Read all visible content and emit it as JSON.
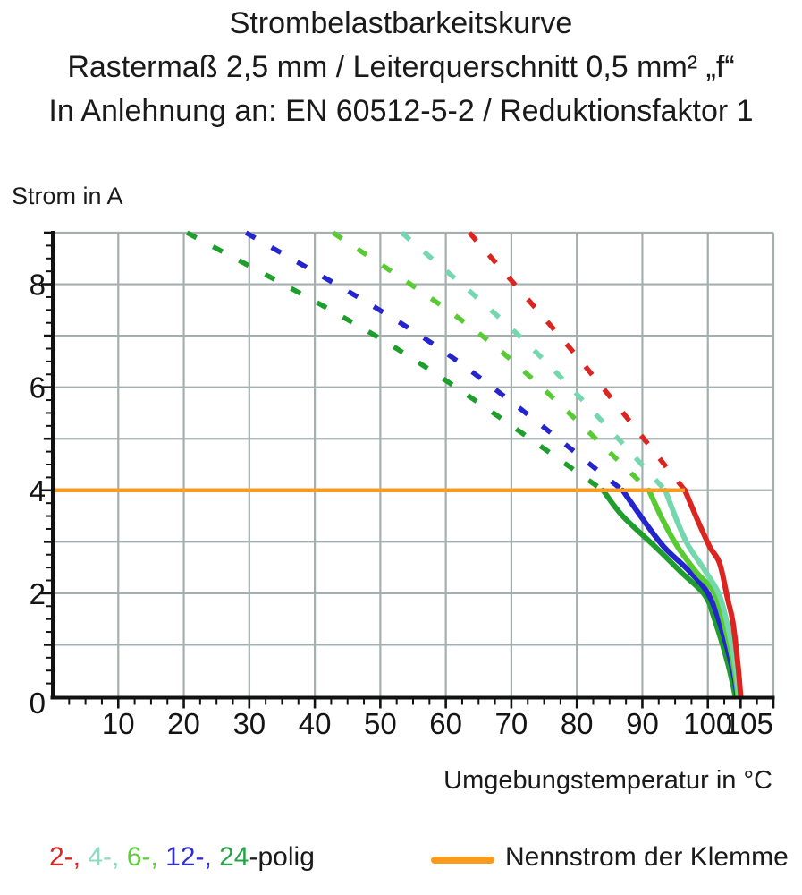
{
  "title": {
    "line1": "Strombelastbarkeitskurve",
    "line2": "Rastermaß 2,5 mm / Leiterquerschnitt 0,5 mm² „f“",
    "line3": "In Anlehnung an: EN 60512-5-2 / Reduktionsfaktor 1"
  },
  "chart_data": {
    "type": "line",
    "title": "Strombelastbarkeitskurve",
    "ylabel": "Strom in A",
    "xlabel": "Umgebungstemperatur in °C",
    "xlim": [
      0,
      110
    ],
    "ylim": [
      0,
      9
    ],
    "grid": true,
    "x_tick_labels": [
      10,
      20,
      30,
      40,
      50,
      60,
      70,
      80,
      90,
      100,
      105
    ],
    "y_tick_labels": [
      0,
      2,
      4,
      6,
      8
    ],
    "x_minor_step": 2.5,
    "y_minor_step": 0.25,
    "grid_color": "#A6AFAF",
    "axis_color": "#111111",
    "nennstrom": {
      "label": "Nennstrom der Klemme",
      "value_a": 4,
      "x_start": 0,
      "x_end": 96.5,
      "color": "#FB9B1E"
    },
    "series": [
      {
        "name": "24-polig",
        "poles": 24,
        "color": "#1F9E2E",
        "dashed_points": [
          [
            20.5,
            9
          ],
          [
            52.5,
            6.75
          ],
          [
            84,
            4
          ]
        ],
        "solid_points": [
          [
            84,
            4
          ],
          [
            87,
            3.5
          ],
          [
            92,
            2.9
          ],
          [
            96,
            2.4
          ],
          [
            99.5,
            1.97
          ],
          [
            101,
            1.5
          ],
          [
            103,
            0.66
          ],
          [
            104.2,
            0
          ]
        ]
      },
      {
        "name": "12-polig",
        "poles": 12,
        "color": "#2525CD",
        "dashed_points": [
          [
            29.5,
            9
          ],
          [
            58.5,
            6.8
          ],
          [
            87,
            4
          ]
        ],
        "solid_points": [
          [
            87,
            4
          ],
          [
            90,
            3.45
          ],
          [
            93.3,
            2.9
          ],
          [
            97,
            2.45
          ],
          [
            100,
            2.0
          ],
          [
            102,
            1.35
          ],
          [
            103.8,
            0.5
          ],
          [
            104.5,
            0
          ]
        ]
      },
      {
        "name": "6-polig",
        "poles": 6,
        "color": "#58CB34",
        "dashed_points": [
          [
            42.8,
            9
          ],
          [
            67,
            6.85
          ],
          [
            91,
            4
          ]
        ],
        "solid_points": [
          [
            91,
            4
          ],
          [
            93.2,
            3.4
          ],
          [
            95.4,
            2.9
          ],
          [
            98.3,
            2.4
          ],
          [
            101,
            2.0
          ],
          [
            102.8,
            1.25
          ],
          [
            104,
            0.55
          ],
          [
            104.6,
            0
          ]
        ]
      },
      {
        "name": "4-polig",
        "poles": 4,
        "color": "#74D7AE",
        "dashed_points": [
          [
            53.3,
            9
          ],
          [
            73.4,
            6.73
          ],
          [
            93.5,
            4
          ]
        ],
        "solid_points": [
          [
            93.5,
            4
          ],
          [
            95.3,
            3.4
          ],
          [
            97,
            2.93
          ],
          [
            99.5,
            2.45
          ],
          [
            101.8,
            1.95
          ],
          [
            103.3,
            1.2
          ],
          [
            104.3,
            0.5
          ],
          [
            104.7,
            0
          ]
        ]
      },
      {
        "name": "2-polig",
        "poles": 2,
        "color": "#DC2420",
        "dashed_points": [
          [
            63.6,
            9
          ],
          [
            80,
            6.6
          ],
          [
            96.5,
            4
          ]
        ],
        "solid_points": [
          [
            96.5,
            4
          ],
          [
            98.5,
            3.4
          ],
          [
            100.3,
            2.9
          ],
          [
            101.8,
            2.58
          ],
          [
            103,
            1.9
          ],
          [
            103.8,
            1.45
          ],
          [
            104.6,
            0.6
          ],
          [
            105,
            0
          ]
        ]
      }
    ],
    "legend": {
      "items": [
        {
          "label": "2-,",
          "series": "2-polig",
          "color": "#DC2420"
        },
        {
          "label": "4-,",
          "series": "4-polig",
          "color": "#8BDCC2"
        },
        {
          "label": "6-,",
          "series": "6-polig",
          "color": "#5ECC3C"
        },
        {
          "label": "12-,",
          "series": "12-polig",
          "color": "#2F2FD0"
        },
        {
          "label": "24",
          "series": "24-polig",
          "color": "#27A249"
        }
      ],
      "suffix": "-polig",
      "suffix_color": "#1a1a1a"
    }
  }
}
